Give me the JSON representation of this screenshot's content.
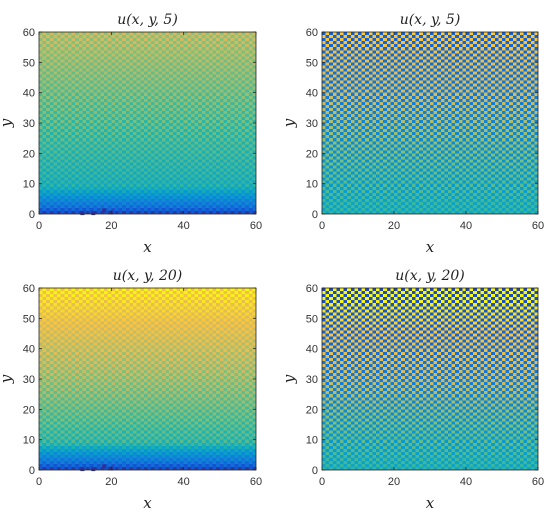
{
  "chart_data": [
    {
      "type": "heatmap",
      "title": "u(x, y, 5)",
      "xlabel": "x",
      "ylabel": "y",
      "xlim": [
        0,
        60
      ],
      "ylim": [
        0,
        60
      ],
      "xticks": [
        "0",
        "20",
        "40",
        "60"
      ],
      "yticks": [
        "0",
        "10",
        "20",
        "30",
        "40",
        "50",
        "60"
      ],
      "grid": false,
      "colormap": "parula",
      "field": {
        "pattern": "smooth",
        "low_value": 0.0,
        "high_value": 0.78,
        "base_band": 0.55,
        "checker_amplitude": 0.05
      },
      "markers": [
        {
          "x": 12,
          "y": 0.3
        },
        {
          "x": 15,
          "y": 0.3
        },
        {
          "x": 18,
          "y": 1.2
        },
        {
          "x": 20,
          "y": 0.5
        }
      ]
    },
    {
      "type": "heatmap",
      "title": "u(x, y, 5)",
      "xlabel": "x",
      "ylabel": "y",
      "xlim": [
        0,
        60
      ],
      "ylim": [
        0,
        60
      ],
      "xticks": [
        "0",
        "20",
        "40",
        "60"
      ],
      "yticks": [
        "0",
        "10",
        "20",
        "30",
        "40",
        "50",
        "60"
      ],
      "grid": false,
      "colormap": "parula",
      "field": {
        "pattern": "checkerboard",
        "center_value": 0.55,
        "amplitude_bottom": 0.05,
        "amplitude_top": 0.38
      }
    },
    {
      "type": "heatmap",
      "title": "u(x, y, 20)",
      "xlabel": "x",
      "ylabel": "y",
      "xlim": [
        0,
        60
      ],
      "ylim": [
        0,
        60
      ],
      "xticks": [
        "0",
        "20",
        "40",
        "60"
      ],
      "yticks": [
        "0",
        "10",
        "20",
        "30",
        "40",
        "50",
        "60"
      ],
      "grid": false,
      "colormap": "parula",
      "field": {
        "pattern": "smooth",
        "low_value": 0.0,
        "high_value": 0.95,
        "base_band": 0.6,
        "checker_amplitude": 0.05
      },
      "markers": [
        {
          "x": 12,
          "y": 0.3
        },
        {
          "x": 15,
          "y": 0.3
        },
        {
          "x": 18,
          "y": 1.2
        },
        {
          "x": 20,
          "y": 0.5
        }
      ]
    },
    {
      "type": "heatmap",
      "title": "u(x, y, 20)",
      "xlabel": "x",
      "ylabel": "y",
      "xlim": [
        0,
        60
      ],
      "ylim": [
        0,
        60
      ],
      "xticks": [
        "0",
        "20",
        "40",
        "60"
      ],
      "yticks": [
        "0",
        "10",
        "20",
        "30",
        "40",
        "50",
        "60"
      ],
      "grid": false,
      "colormap": "parula",
      "field": {
        "pattern": "checkerboard",
        "center_value": 0.55,
        "amplitude_bottom": 0.05,
        "amplitude_top": 0.47
      }
    }
  ]
}
